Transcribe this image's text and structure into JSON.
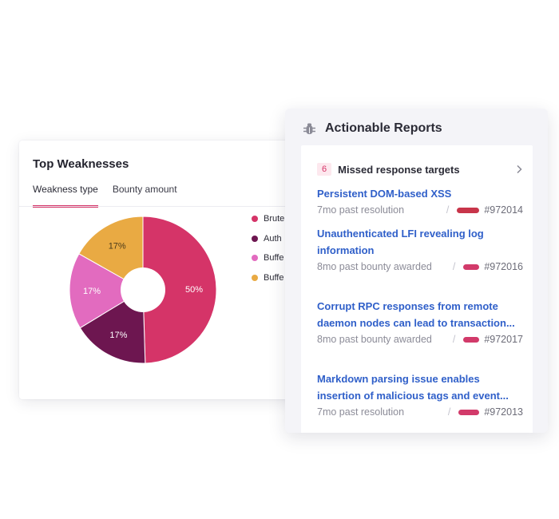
{
  "top_weaknesses": {
    "title": "Top Weaknesses",
    "tabs": [
      {
        "label": "Weakness type",
        "active": true
      },
      {
        "label": "Bounty amount",
        "active": false
      }
    ],
    "legend": [
      {
        "label": "Brute",
        "color": "#d53468"
      },
      {
        "label": "Auth",
        "color": "#6d1650"
      },
      {
        "label": "Buffe",
        "color": "#e26bbf"
      },
      {
        "label": "Buffe",
        "color": "#e9aa43"
      }
    ],
    "chart_data": {
      "type": "pie",
      "categories": [
        "Brute",
        "Auth",
        "Buffe",
        "Buffe"
      ],
      "values": [
        50,
        17,
        17,
        17
      ],
      "labels": [
        "50%",
        "17%",
        "17%",
        "17%"
      ],
      "colors": [
        "#d53468",
        "#6d1650",
        "#e26bbf",
        "#e9aa43"
      ],
      "donut": true
    }
  },
  "actionable_reports": {
    "title": "Actionable Reports",
    "icon": "bug-icon",
    "missed": {
      "count": "6",
      "label": "Missed response targets"
    },
    "reports": [
      {
        "title": "Persistent DOM-based XSS",
        "meta": "7mo past resolution",
        "id": "#972014",
        "pill_color": "#c8354a"
      },
      {
        "title": "Unauthenticated LFI revealing log information",
        "meta": "8mo past bounty awarded",
        "id": "#972016",
        "pill_color": "#d23a6a"
      },
      {
        "title": "Corrupt RPC responses from remote daemon nodes can lead to transaction...",
        "meta": "8mo past bounty awarded",
        "id": "#972017",
        "pill_color": "#d23a6a"
      },
      {
        "title": "Markdown parsing issue enables insertion of malicious tags and event...",
        "meta": "7mo past resolution",
        "id": "#972013",
        "pill_color": "#d23a6a"
      }
    ]
  }
}
